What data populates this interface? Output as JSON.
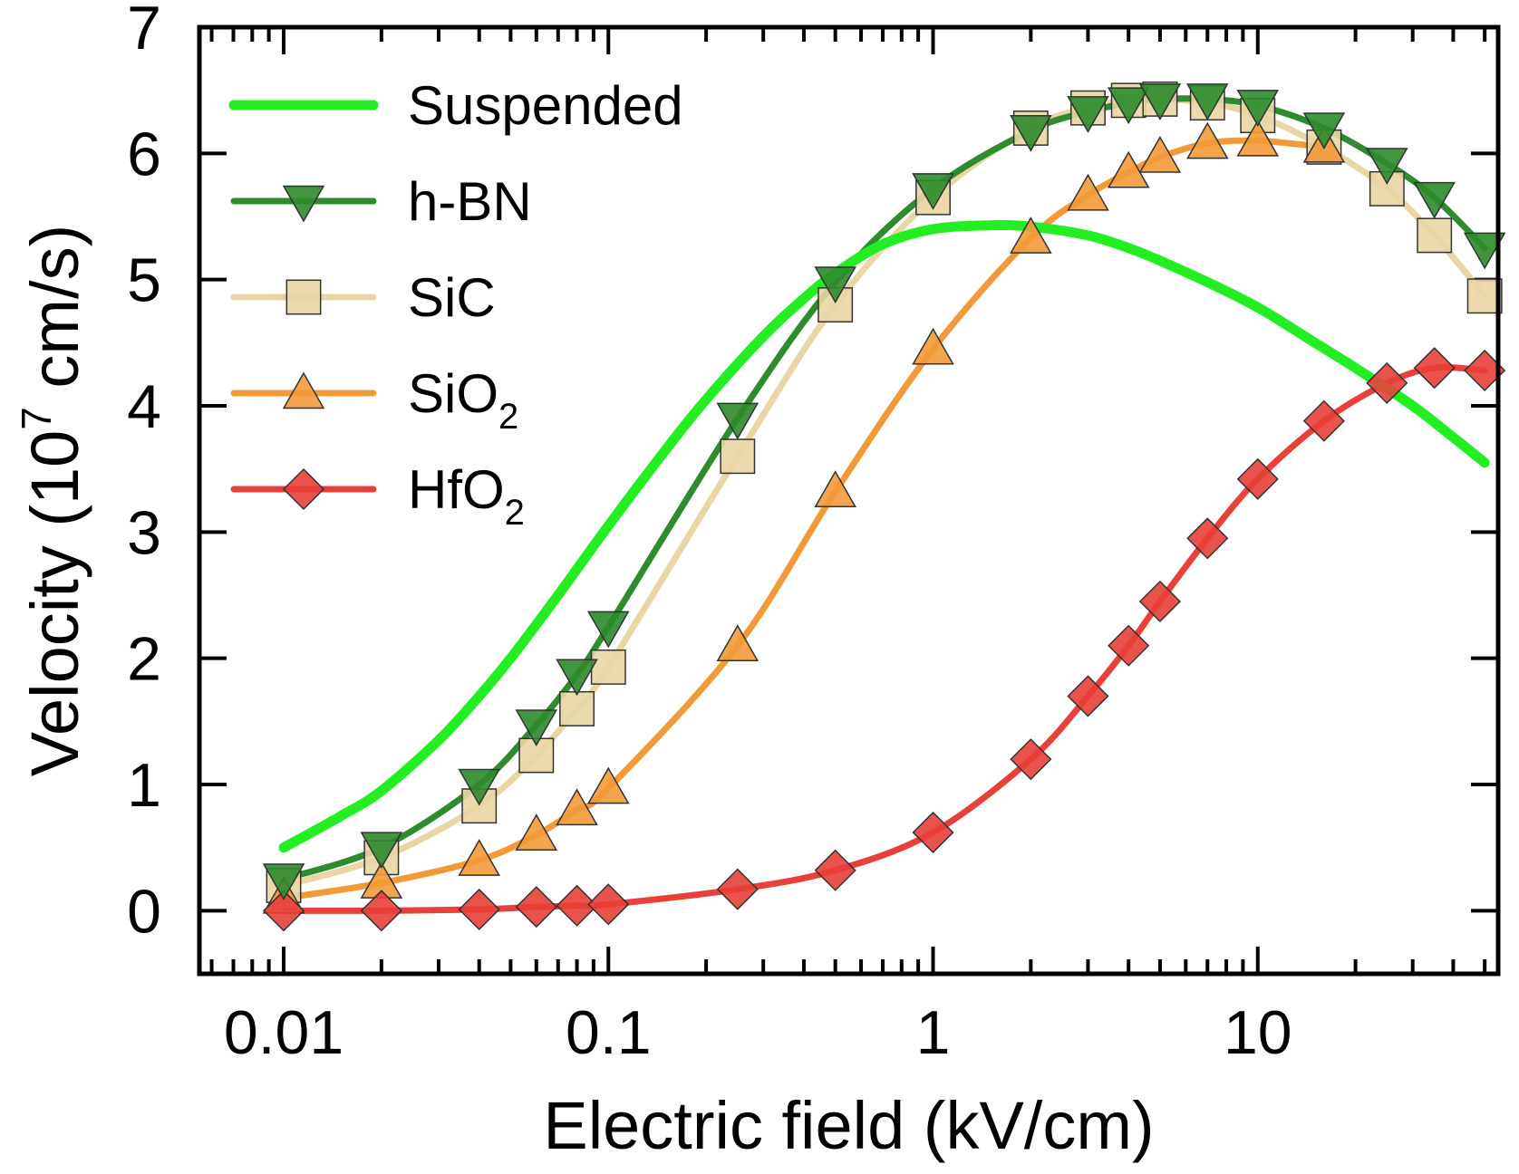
{
  "chart_data": {
    "type": "line",
    "title": "",
    "xlabel": "Electric field (kV/cm)",
    "ylabel_main": "Velocity (10",
    "ylabel_sup": "7",
    "ylabel_tail": " cm/s)",
    "xscale": "log",
    "xlim": [
      0.0055,
      55
    ],
    "ylim": [
      -0.5,
      7
    ],
    "x_ticks": [
      0.01,
      0.1,
      1,
      10
    ],
    "x_tick_labels": [
      "0.01",
      "0.1",
      "1",
      "10"
    ],
    "y_ticks": [
      0,
      1,
      2,
      3,
      4,
      5,
      6,
      7
    ],
    "y_tick_labels": [
      "0",
      "1",
      "2",
      "3",
      "4",
      "5",
      "6",
      "7"
    ],
    "legend_position": "top-left",
    "series": [
      {
        "name": "Suspended",
        "label": "Suspended",
        "color": "#22ee22",
        "marker": "none",
        "x": [
          0.01,
          0.015,
          0.02,
          0.03,
          0.04,
          0.05,
          0.07,
          0.1,
          0.15,
          0.2,
          0.3,
          0.4,
          0.5,
          0.7,
          1,
          1.5,
          2,
          3,
          4,
          5,
          7,
          10,
          15,
          20,
          30,
          40,
          50
        ],
        "y": [
          0.5,
          0.75,
          0.95,
          1.35,
          1.7,
          2.0,
          2.5,
          3.05,
          3.65,
          4.05,
          4.55,
          4.85,
          5.05,
          5.28,
          5.4,
          5.43,
          5.42,
          5.35,
          5.25,
          5.15,
          4.98,
          4.78,
          4.5,
          4.3,
          4.0,
          3.75,
          3.55
        ]
      },
      {
        "name": "h-BN",
        "label": "h-BN",
        "color": "#2e8b2e",
        "marker": "triangle-down",
        "x": [
          0.01,
          0.02,
          0.04,
          0.06,
          0.08,
          0.1,
          0.25,
          0.5,
          1,
          2,
          3,
          4,
          5,
          7,
          10,
          16,
          25,
          35,
          50
        ],
        "y": [
          0.25,
          0.5,
          1.0,
          1.47,
          1.87,
          2.25,
          3.9,
          4.98,
          5.72,
          6.18,
          6.33,
          6.4,
          6.43,
          6.43,
          6.38,
          6.2,
          5.92,
          5.65,
          5.25
        ]
      },
      {
        "name": "SiC",
        "label": "SiC",
        "color": "#e8d6a4",
        "marker": "square",
        "x": [
          0.01,
          0.02,
          0.04,
          0.06,
          0.08,
          0.1,
          0.25,
          0.5,
          1,
          2,
          3,
          4,
          5,
          7,
          10,
          16,
          25,
          35,
          50
        ],
        "y": [
          0.2,
          0.42,
          0.83,
          1.23,
          1.6,
          1.93,
          3.6,
          4.8,
          5.65,
          6.2,
          6.36,
          6.42,
          6.43,
          6.4,
          6.3,
          6.05,
          5.72,
          5.35,
          4.87
        ]
      },
      {
        "name": "SiO2",
        "label": "SiO",
        "label_sub": "2",
        "color": "#f29a38",
        "marker": "triangle-up",
        "x": [
          0.01,
          0.02,
          0.04,
          0.06,
          0.08,
          0.1,
          0.25,
          0.5,
          1,
          2,
          3,
          4,
          5,
          7,
          10,
          16
        ],
        "y": [
          0.1,
          0.22,
          0.4,
          0.6,
          0.8,
          0.97,
          2.1,
          3.32,
          4.45,
          5.33,
          5.67,
          5.85,
          5.97,
          6.08,
          6.1,
          6.05
        ]
      },
      {
        "name": "HfO2",
        "label": "HfO",
        "label_sub": "2",
        "color": "#e8403a",
        "marker": "diamond",
        "x": [
          0.01,
          0.02,
          0.04,
          0.06,
          0.08,
          0.1,
          0.25,
          0.5,
          1,
          2,
          3,
          4,
          5,
          7,
          10,
          16,
          25,
          35,
          50
        ],
        "y": [
          0.0,
          0.0,
          0.01,
          0.03,
          0.04,
          0.05,
          0.17,
          0.32,
          0.62,
          1.2,
          1.7,
          2.1,
          2.45,
          2.95,
          3.42,
          3.88,
          4.18,
          4.3,
          4.28
        ]
      }
    ]
  }
}
